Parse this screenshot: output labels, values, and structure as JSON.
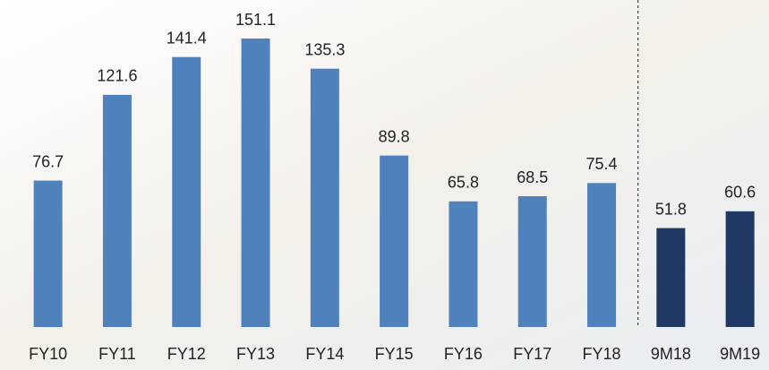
{
  "chart_data": {
    "type": "bar",
    "categories": [
      "FY10",
      "FY11",
      "FY12",
      "FY13",
      "FY14",
      "FY15",
      "FY16",
      "FY17",
      "FY18",
      "9M18",
      "9M19"
    ],
    "values": [
      76.7,
      121.6,
      141.4,
      151.1,
      135.3,
      89.8,
      65.8,
      68.5,
      75.4,
      51.8,
      60.6
    ],
    "colors": [
      "#4f81bd",
      "#4f81bd",
      "#4f81bd",
      "#4f81bd",
      "#4f81bd",
      "#4f81bd",
      "#4f81bd",
      "#4f81bd",
      "#4f81bd",
      "#1f3864",
      "#1f3864"
    ]
  }
}
